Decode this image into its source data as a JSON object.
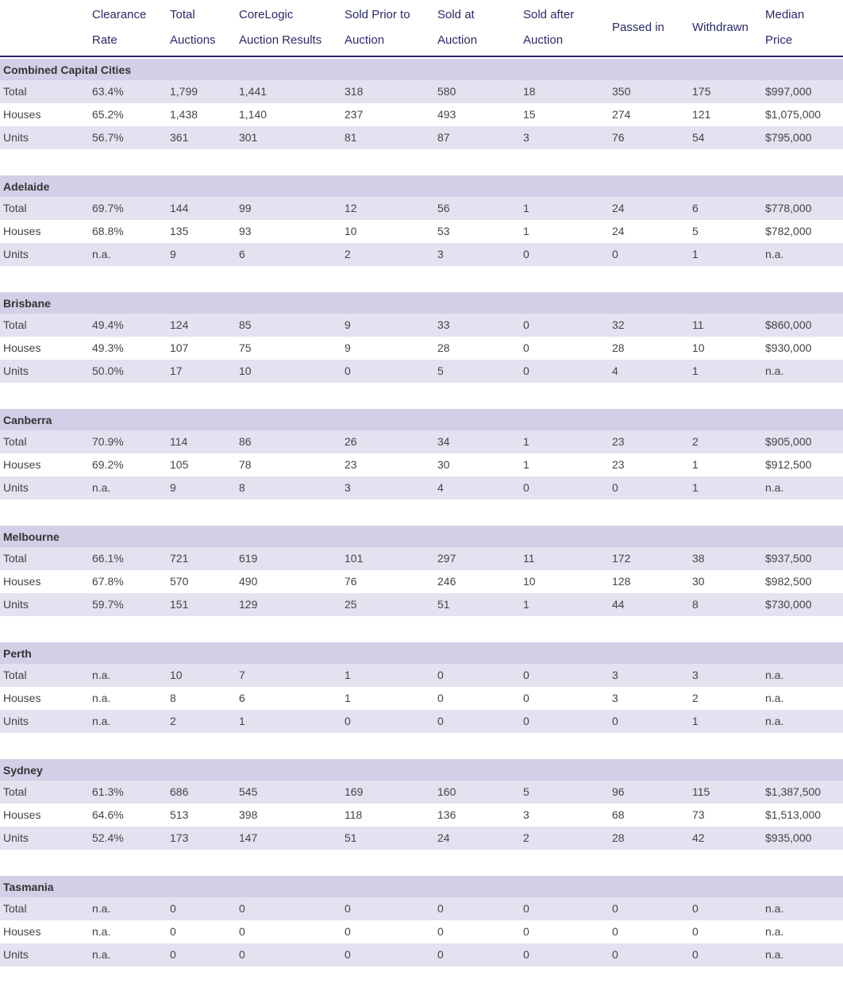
{
  "table": {
    "columns": [
      [],
      [
        "Clearance",
        "Rate"
      ],
      [
        "Total",
        "Auctions"
      ],
      [
        "CoreLogic",
        "Auction Results"
      ],
      [
        "Sold Prior to",
        "Auction"
      ],
      [
        "Sold at",
        "Auction"
      ],
      [
        "Sold after",
        "Auction"
      ],
      [
        "Passed in"
      ],
      [
        "Withdrawn"
      ],
      [
        "Median",
        "Price"
      ]
    ],
    "sections": [
      {
        "title": "Combined Capital Cities",
        "rows": [
          [
            "Total",
            "63.4%",
            "1,799",
            "1,441",
            "318",
            "580",
            "18",
            "350",
            "175",
            "$997,000"
          ],
          [
            "Houses",
            "65.2%",
            "1,438",
            "1,140",
            "237",
            "493",
            "15",
            "274",
            "121",
            "$1,075,000"
          ],
          [
            "Units",
            "56.7%",
            "361",
            "301",
            "81",
            "87",
            "3",
            "76",
            "54",
            "$795,000"
          ]
        ]
      },
      {
        "title": "Adelaide",
        "rows": [
          [
            "Total",
            "69.7%",
            "144",
            "99",
            "12",
            "56",
            "1",
            "24",
            "6",
            "$778,000"
          ],
          [
            "Houses",
            "68.8%",
            "135",
            "93",
            "10",
            "53",
            "1",
            "24",
            "5",
            "$782,000"
          ],
          [
            "Units",
            "n.a.",
            "9",
            "6",
            "2",
            "3",
            "0",
            "0",
            "1",
            "n.a."
          ]
        ]
      },
      {
        "title": "Brisbane",
        "rows": [
          [
            "Total",
            "49.4%",
            "124",
            "85",
            "9",
            "33",
            "0",
            "32",
            "11",
            "$860,000"
          ],
          [
            "Houses",
            "49.3%",
            "107",
            "75",
            "9",
            "28",
            "0",
            "28",
            "10",
            "$930,000"
          ],
          [
            "Units",
            "50.0%",
            "17",
            "10",
            "0",
            "5",
            "0",
            "4",
            "1",
            "n.a."
          ]
        ]
      },
      {
        "title": "Canberra",
        "rows": [
          [
            "Total",
            "70.9%",
            "114",
            "86",
            "26",
            "34",
            "1",
            "23",
            "2",
            "$905,000"
          ],
          [
            "Houses",
            "69.2%",
            "105",
            "78",
            "23",
            "30",
            "1",
            "23",
            "1",
            "$912,500"
          ],
          [
            "Units",
            "n.a.",
            "9",
            "8",
            "3",
            "4",
            "0",
            "0",
            "1",
            "n.a."
          ]
        ]
      },
      {
        "title": "Melbourne",
        "rows": [
          [
            "Total",
            "66.1%",
            "721",
            "619",
            "101",
            "297",
            "11",
            "172",
            "38",
            "$937,500"
          ],
          [
            "Houses",
            "67.8%",
            "570",
            "490",
            "76",
            "246",
            "10",
            "128",
            "30",
            "$982,500"
          ],
          [
            "Units",
            "59.7%",
            "151",
            "129",
            "25",
            "51",
            "1",
            "44",
            "8",
            "$730,000"
          ]
        ]
      },
      {
        "title": "Perth",
        "rows": [
          [
            "Total",
            "n.a.",
            "10",
            "7",
            "1",
            "0",
            "0",
            "3",
            "3",
            "n.a."
          ],
          [
            "Houses",
            "n.a.",
            "8",
            "6",
            "1",
            "0",
            "0",
            "3",
            "2",
            "n.a."
          ],
          [
            "Units",
            "n.a.",
            "2",
            "1",
            "0",
            "0",
            "0",
            "0",
            "1",
            "n.a."
          ]
        ]
      },
      {
        "title": "Sydney",
        "rows": [
          [
            "Total",
            "61.3%",
            "686",
            "545",
            "169",
            "160",
            "5",
            "96",
            "115",
            "$1,387,500"
          ],
          [
            "Houses",
            "64.6%",
            "513",
            "398",
            "118",
            "136",
            "3",
            "68",
            "73",
            "$1,513,000"
          ],
          [
            "Units",
            "52.4%",
            "173",
            "147",
            "51",
            "24",
            "2",
            "28",
            "42",
            "$935,000"
          ]
        ]
      },
      {
        "title": "Tasmania",
        "rows": [
          [
            "Total",
            "n.a.",
            "0",
            "0",
            "0",
            "0",
            "0",
            "0",
            "0",
            "n.a."
          ],
          [
            "Houses",
            "n.a.",
            "0",
            "0",
            "0",
            "0",
            "0",
            "0",
            "0",
            "n.a."
          ],
          [
            "Units",
            "n.a.",
            "0",
            "0",
            "0",
            "0",
            "0",
            "0",
            "0",
            "n.a."
          ]
        ]
      }
    ]
  }
}
